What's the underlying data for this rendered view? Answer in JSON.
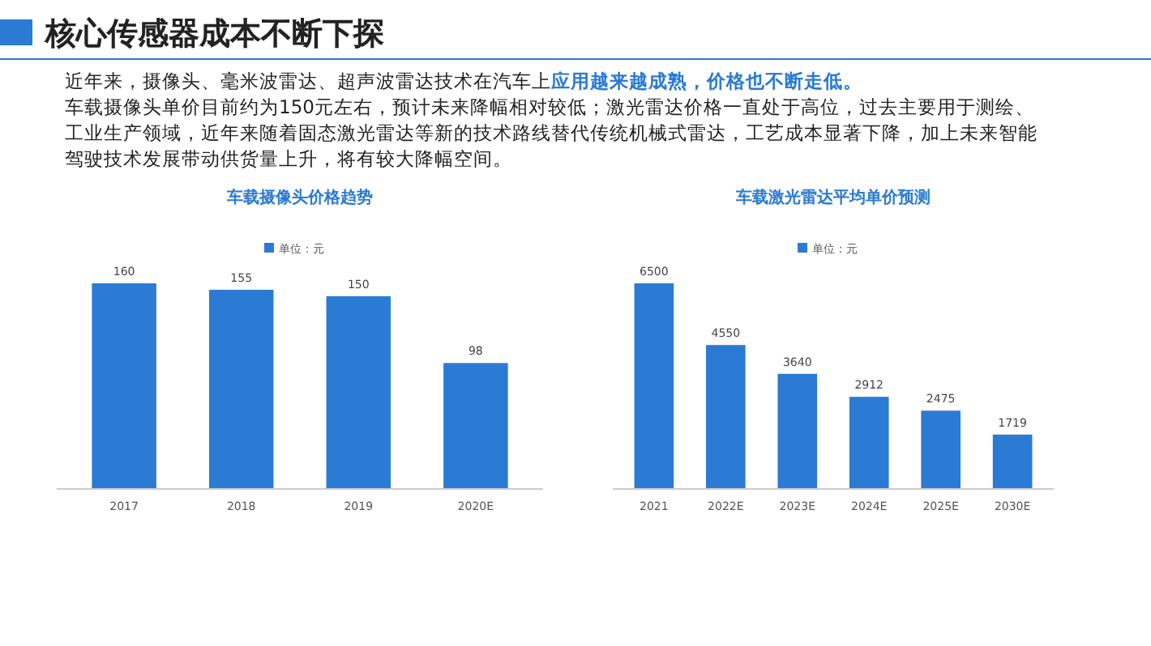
{
  "chart_data": [
    {
      "type": "other",
      "title": "核心传感器成本不断下探",
      "annotations": [
        "近年来，摄像头、毫米波雷达、超声波雷达技术在汽车上",
        "应用越来越成熟，价格也不断走低。",
        "车载摄像头单价目前约为150元左右，预计未来降幅相对较低；激光雷达价格一直处于高位，过去主要用于测绘、工业生产领域，近年来随着固态激光雷达等新的技术路线替代传统机械式雷达，工艺成本显著下降，加上未来智能驾驶技术发展带动供货量上升，将有较大降幅空间。"
      ]
    },
    {
      "type": "bar",
      "title": "车载摄像头价格趋势",
      "categories": [
        "2017",
        "2018",
        "2019",
        "2020E"
      ],
      "series": [
        {
          "name": "单位：元",
          "color": "#2b7bd4",
          "values": [
            160,
            155,
            150,
            98
          ]
        }
      ],
      "data_labels": true,
      "legend": "top"
    },
    {
      "type": "bar",
      "title": "车载激光雷达平均单价预测",
      "categories": [
        "2021",
        "2022E",
        "2023E",
        "2024E",
        "2025E",
        "2030E"
      ],
      "series": [
        {
          "name": "单位：元",
          "color": "#2b7bd4",
          "values": [
            6500,
            4550,
            3640,
            2912,
            2475,
            1719
          ]
        }
      ],
      "data_labels": true,
      "legend": "top"
    }
  ]
}
